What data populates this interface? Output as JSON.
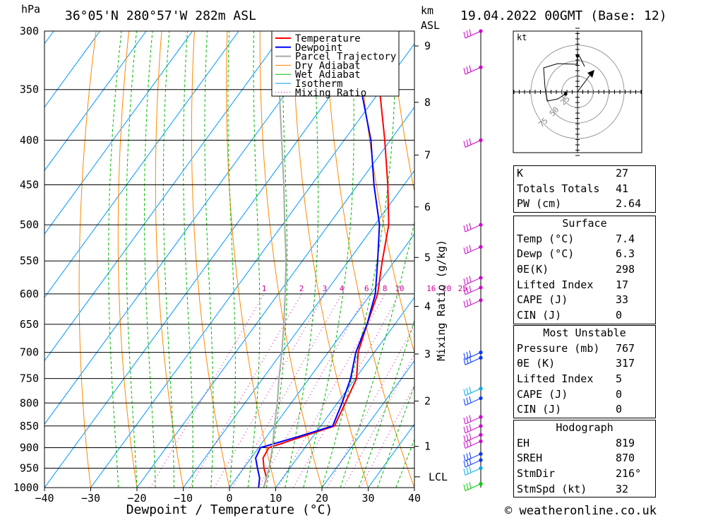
{
  "header": {
    "location": "36°05'N 280°57'W 282m ASL",
    "date": "19.04.2022 00GMT (Base: 12)",
    "hpa_label": "hPa",
    "km_label": "km",
    "asl_label": "ASL",
    "footer": "© weatheronline.co.uk"
  },
  "chart_data": {
    "type": "skew-t",
    "xlabel": "Dewpoint / Temperature (°C)",
    "ylabel": "",
    "right_label": "Mixing Ratio (g/kg)",
    "x_ticks": [
      -40,
      -30,
      -20,
      -10,
      0,
      10,
      20,
      30,
      40
    ],
    "x_tick_labels": [
      "−40",
      "−30",
      "−20",
      "−10",
      "0",
      "10",
      "20",
      "30",
      "40"
    ],
    "pressure_levels": [
      300,
      350,
      400,
      450,
      500,
      550,
      600,
      650,
      700,
      750,
      800,
      850,
      900,
      950,
      1000
    ],
    "km_ticks": [
      {
        "label": "1",
        "p": 897
      },
      {
        "label": "2",
        "p": 796
      },
      {
        "label": "3",
        "p": 703
      },
      {
        "label": "4",
        "p": 620
      },
      {
        "label": "5",
        "p": 545
      },
      {
        "label": "6",
        "p": 477
      },
      {
        "label": "7",
        "p": 416
      },
      {
        "label": "8",
        "p": 362
      },
      {
        "label": "9",
        "p": 312
      }
    ],
    "lcl_label": "LCL",
    "lcl_p": 972,
    "mixing_ratio_labels": [
      "1",
      "2",
      "3",
      "4",
      "6",
      "8",
      "10",
      "16",
      "20",
      "25"
    ],
    "mixing_ratio_values": [
      1,
      2,
      3,
      4,
      6,
      8,
      10,
      16,
      20,
      25
    ],
    "legend": [
      "Temperature",
      "Dewpoint",
      "Parcel Trajectory",
      "Dry Adiabat",
      "Wet Adiabat",
      "Isotherm",
      "Mixing Ratio"
    ],
    "legend_placement": "top-left",
    "series": [
      {
        "name": "Temperature",
        "p": [
          1000,
          975,
          950,
          925,
          900,
          875,
          850,
          800,
          750,
          700,
          650,
          600,
          550,
          500,
          450,
          400,
          350,
          300
        ],
        "t": [
          7.4,
          6.5,
          4.4,
          2.6,
          2.2,
          7.5,
          13.0,
          11.7,
          10.3,
          6.5,
          4.0,
          1.5,
          -2.7,
          -7.0,
          -13.5,
          -21.2,
          -30.3,
          -41.0
        ]
      },
      {
        "name": "Dewpoint",
        "p": [
          1000,
          975,
          950,
          925,
          900,
          875,
          850,
          800,
          750,
          700,
          650,
          600,
          550,
          500,
          450,
          400,
          350,
          300
        ],
        "t": [
          6.3,
          5.0,
          3.0,
          1.0,
          0.4,
          6.6,
          12.6,
          11.0,
          9.0,
          6.0,
          4.0,
          1.0,
          -3.7,
          -9.0,
          -16.5,
          -24.2,
          -34.3,
          -46.0
        ]
      },
      {
        "name": "Parcel Trajectory",
        "p": [
          1000,
          950,
          900,
          850,
          800,
          750,
          700,
          650,
          600,
          550,
          500,
          450,
          400,
          350,
          300
        ],
        "t": [
          7.4,
          5.5,
          3.0,
          0.0,
          -3.0,
          -6.5,
          -10.0,
          -14.0,
          -18.5,
          -23.5,
          -29.5,
          -36.0,
          -43.5,
          -52.0,
          -62.0
        ]
      }
    ],
    "colors": {
      "temperature": "#ff0000",
      "dewpoint": "#0000ff",
      "parcel": "#aaaaaa",
      "dry_adiabat": "#ff8800",
      "wet_adiabat": "#00bb00",
      "isotherm": "#0099ff",
      "mixing_ratio": "#cc0099"
    },
    "hodograph": {
      "unit_label": "kt",
      "ring_labels": [
        "25",
        "50",
        "75"
      ]
    }
  },
  "indices": {
    "k_label": "K",
    "k": "27",
    "tt_label": "Totals Totals",
    "tt": "41",
    "pw_label": "PW (cm)",
    "pw": "2.64"
  },
  "surface": {
    "title": "Surface",
    "temp_label": "Temp (°C)",
    "temp": "7.4",
    "dewp_label": "Dewp (°C)",
    "dewp": "6.3",
    "theta_label": "θE(K)",
    "theta": "298",
    "li_label": "Lifted Index",
    "li": "17",
    "cape_label": "CAPE (J)",
    "cape": "33",
    "cin_label": "CIN (J)",
    "cin": "0"
  },
  "most_unstable": {
    "title": "Most Unstable",
    "pressure_label": "Pressure (mb)",
    "pressure": "767",
    "theta_label": "θE (K)",
    "theta": "317",
    "li_label": "Lifted Index",
    "li": "5",
    "cape_label": "CAPE (J)",
    "cape": "0",
    "cin_label": "CIN (J)",
    "cin": "0"
  },
  "hodograph_stats": {
    "title": "Hodograph",
    "eh_label": "EH",
    "eh": "819",
    "sreh_label": "SREH",
    "sreh": "870",
    "stmdir_label": "StmDir",
    "stmdir": "216°",
    "stmspd_label": "StmSpd (kt)",
    "stmspd": "32"
  }
}
